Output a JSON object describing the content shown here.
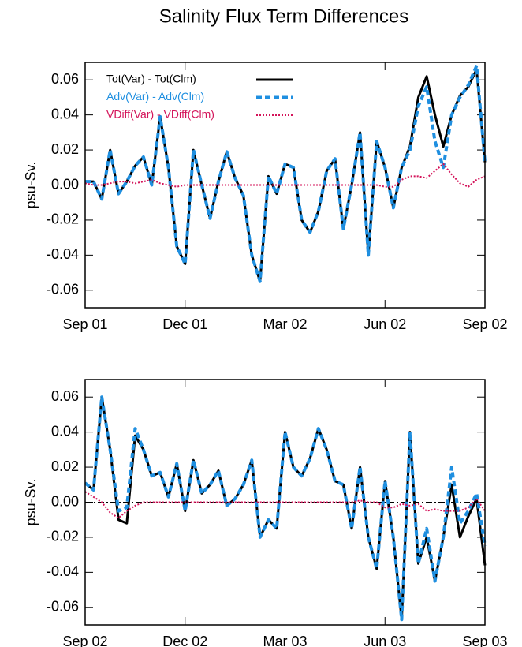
{
  "chart_data": [
    {
      "type": "line",
      "title": "Salinity Flux Term Differences",
      "ylabel": "psu-Sv.",
      "x": [
        0,
        0.25,
        0.5,
        0.75,
        1,
        1.25,
        1.5,
        1.75,
        2,
        2.25,
        2.5,
        2.75,
        3,
        3.25,
        3.5,
        3.75,
        4,
        4.25,
        4.5,
        4.75,
        5,
        5.25,
        5.5,
        5.75,
        6,
        6.25,
        6.5,
        6.75,
        7,
        7.25,
        7.5,
        7.75,
        8,
        8.25,
        8.5,
        8.75,
        9,
        9.25,
        9.5,
        9.75,
        10,
        10.25,
        10.5,
        10.75,
        11,
        11.25,
        11.5,
        11.75,
        12
      ],
      "xlim": [
        0,
        12
      ],
      "xticks": [
        {
          "value": 0,
          "label": "Sep 01"
        },
        {
          "value": 3,
          "label": "Dec 01"
        },
        {
          "value": 6,
          "label": "Mar 02"
        },
        {
          "value": 9,
          "label": "Jun 02"
        },
        {
          "value": 12,
          "label": "Sep 02"
        }
      ],
      "ylim": [
        -0.07,
        0.07
      ],
      "yticks": [
        {
          "value": -0.06,
          "label": "-0.06"
        },
        {
          "value": -0.04,
          "label": "-0.04"
        },
        {
          "value": -0.02,
          "label": "-0.02"
        },
        {
          "value": 0,
          "label": "0.00"
        },
        {
          "value": 0.02,
          "label": "0.02"
        },
        {
          "value": 0.04,
          "label": "0.04"
        },
        {
          "value": 0.06,
          "label": "0.06"
        }
      ],
      "hline": 0,
      "legend": "upper left",
      "series": [
        {
          "name": "Tot(Var) - Tot(Clm)",
          "color": "#000000",
          "style": "solid",
          "values": [
            0.002,
            0.002,
            -0.008,
            0.02,
            -0.005,
            0.002,
            0.011,
            0.016,
            0.0,
            0.039,
            0.01,
            -0.035,
            -0.045,
            0.02,
            0.0,
            -0.019,
            0.002,
            0.019,
            0.004,
            -0.006,
            -0.04,
            -0.055,
            0.005,
            -0.005,
            0.012,
            0.01,
            -0.02,
            -0.027,
            -0.015,
            0.008,
            0.015,
            -0.025,
            0.0,
            0.03,
            -0.04,
            0.025,
            0.01,
            -0.013,
            0.01,
            0.022,
            0.05,
            0.062,
            0.04,
            0.022,
            0.04,
            0.051,
            0.056,
            0.066,
            0.013
          ]
        },
        {
          "name": "Adv(Var) - Adv(Clm)",
          "color": "#1f8fe0",
          "style": "dashed",
          "values": [
            0.002,
            0.002,
            -0.008,
            0.02,
            -0.005,
            0.002,
            0.011,
            0.016,
            0.0,
            0.039,
            0.01,
            -0.035,
            -0.045,
            0.02,
            0.0,
            -0.019,
            0.002,
            0.019,
            0.004,
            -0.006,
            -0.04,
            -0.055,
            0.005,
            -0.005,
            0.012,
            0.01,
            -0.02,
            -0.027,
            -0.015,
            0.008,
            0.015,
            -0.025,
            0.0,
            0.03,
            -0.04,
            0.025,
            0.01,
            -0.013,
            0.01,
            0.02,
            0.045,
            0.056,
            0.025,
            0.01,
            0.04,
            0.05,
            0.057,
            0.068,
            0.013
          ]
        },
        {
          "name": "VDiff(Var) - VDiff(Clm)",
          "color": "#d4145a",
          "style": "dotted",
          "values": [
            0.001,
            0.0,
            0.0,
            0.001,
            0.002,
            0.002,
            0.001,
            0.002,
            0.003,
            0.001,
            0.0,
            -0.001,
            0.0,
            0.0,
            0.0,
            0.0,
            0.0,
            0.0,
            0.0,
            0.0,
            0.0,
            0.0,
            0.0,
            0.0,
            0.0,
            0.0,
            0.0,
            0.0,
            0.0,
            0.0,
            0.0,
            0.0,
            0.0,
            0.0,
            0.0,
            0.0,
            -0.001,
            -0.001,
            0.003,
            0.005,
            0.005,
            0.004,
            0.008,
            0.012,
            0.006,
            0.001,
            -0.001,
            0.003,
            0.005
          ]
        }
      ]
    },
    {
      "type": "line",
      "ylabel": "psu-Sv.",
      "x": [
        0,
        0.25,
        0.5,
        0.75,
        1,
        1.25,
        1.5,
        1.75,
        2,
        2.25,
        2.5,
        2.75,
        3,
        3.25,
        3.5,
        3.75,
        4,
        4.25,
        4.5,
        4.75,
        5,
        5.25,
        5.5,
        5.75,
        6,
        6.25,
        6.5,
        6.75,
        7,
        7.25,
        7.5,
        7.75,
        8,
        8.25,
        8.5,
        8.75,
        9,
        9.25,
        9.5,
        9.75,
        10,
        10.25,
        10.5,
        10.75,
        11,
        11.25,
        11.5,
        11.75,
        12
      ],
      "xlim": [
        0,
        12
      ],
      "xticks": [
        {
          "value": 0,
          "label": "Sep 02"
        },
        {
          "value": 3,
          "label": "Dec 02"
        },
        {
          "value": 6,
          "label": "Mar 03"
        },
        {
          "value": 9,
          "label": "Jun 03"
        },
        {
          "value": 12,
          "label": "Sep 03"
        }
      ],
      "ylim": [
        -0.07,
        0.07
      ],
      "yticks": [
        {
          "value": -0.06,
          "label": "-0.06"
        },
        {
          "value": -0.04,
          "label": "-0.04"
        },
        {
          "value": -0.02,
          "label": "-0.02"
        },
        {
          "value": 0,
          "label": "0.00"
        },
        {
          "value": 0.02,
          "label": "0.02"
        },
        {
          "value": 0.04,
          "label": "0.04"
        },
        {
          "value": 0.06,
          "label": "0.06"
        }
      ],
      "hline": 0,
      "series": [
        {
          "color": "#000000",
          "style": "solid",
          "values": [
            0.011,
            0.007,
            0.06,
            0.03,
            -0.01,
            -0.012,
            0.038,
            0.03,
            0.015,
            0.017,
            0.003,
            0.022,
            -0.005,
            0.024,
            0.005,
            0.01,
            0.018,
            -0.002,
            0.002,
            0.01,
            0.024,
            -0.02,
            -0.01,
            -0.015,
            0.04,
            0.02,
            0.015,
            0.025,
            0.042,
            0.03,
            0.012,
            0.01,
            -0.015,
            0.02,
            -0.02,
            -0.038,
            0.012,
            -0.02,
            -0.067,
            0.04,
            -0.035,
            -0.02,
            -0.045,
            -0.02,
            0.01,
            -0.02,
            -0.008,
            0.002,
            -0.036
          ]
        },
        {
          "color": "#1f8fe0",
          "style": "dashed",
          "values": [
            0.011,
            0.007,
            0.06,
            0.03,
            -0.005,
            -0.003,
            0.042,
            0.03,
            0.015,
            0.017,
            0.003,
            0.022,
            -0.005,
            0.024,
            0.005,
            0.01,
            0.018,
            -0.002,
            0.002,
            0.01,
            0.024,
            -0.02,
            -0.01,
            -0.015,
            0.04,
            0.02,
            0.015,
            0.025,
            0.042,
            0.03,
            0.012,
            0.01,
            -0.015,
            0.02,
            -0.02,
            -0.038,
            0.012,
            -0.02,
            -0.067,
            0.04,
            -0.035,
            -0.015,
            -0.045,
            -0.02,
            0.02,
            -0.012,
            -0.005,
            0.005,
            -0.025
          ]
        },
        {
          "color": "#d4145a",
          "style": "dotted",
          "values": [
            0.006,
            0.003,
            0.0,
            -0.006,
            -0.009,
            -0.005,
            -0.002,
            0.0,
            0.0,
            0.0,
            0.0,
            0.0,
            0.0,
            0.0,
            0.0,
            0.0,
            0.0,
            0.0,
            0.0,
            0.0,
            0.0,
            0.0,
            0.0,
            0.0,
            0.0,
            0.0,
            0.0,
            0.0,
            0.0,
            0.0,
            0.0,
            0.0,
            0.0,
            0.001,
            0.0,
            0.0,
            -0.003,
            -0.003,
            -0.001,
            -0.002,
            -0.001,
            -0.005,
            -0.004,
            -0.005,
            -0.005,
            -0.005,
            -0.003,
            0.002,
            -0.005
          ]
        }
      ]
    }
  ]
}
